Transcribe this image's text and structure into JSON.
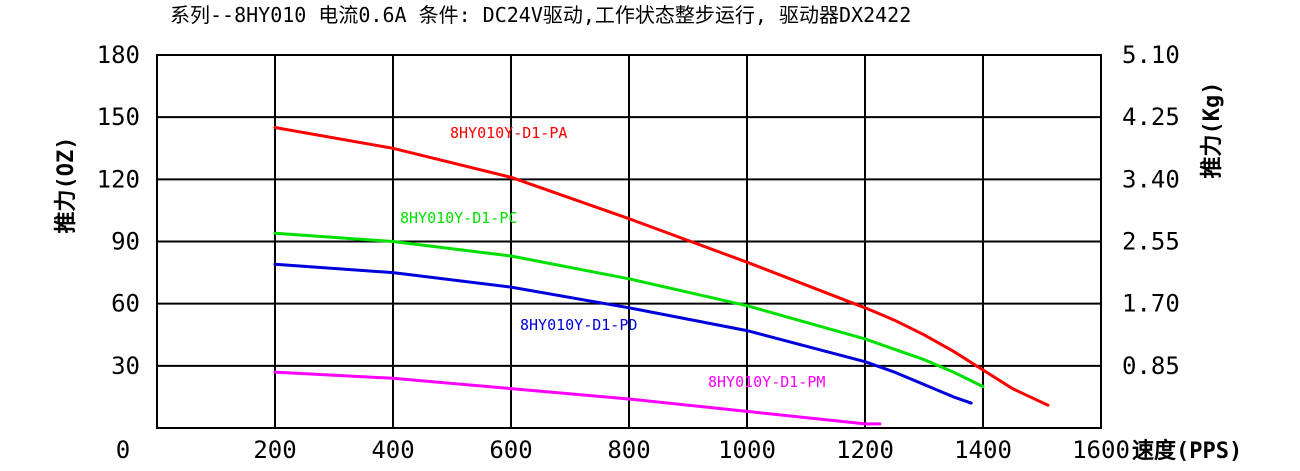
{
  "chart_data": {
    "type": "line",
    "title": "系列--8HY010 电流0.6A    条件: DC24V驱动,工作状态整步运行, 驱动器DX2422",
    "xlabel": "速度(PPS)",
    "ylabel": "推力(OZ)",
    "ylabel_right": "推力(Kg)",
    "xlim": [
      0,
      1600
    ],
    "ylim": [
      0,
      180
    ],
    "ylim_right": [
      0,
      5.1
    ],
    "x_ticks": [
      "0",
      "200",
      "400",
      "600",
      "800",
      "1000",
      "1200",
      "1400",
      "1600"
    ],
    "y_ticks": [
      "30",
      "60",
      "90",
      "120",
      "150",
      "180"
    ],
    "y_ticks_right": [
      "0.85",
      "1.70",
      "2.55",
      "3.40",
      "4.25",
      "5.10"
    ],
    "grid": true,
    "series": [
      {
        "name": "8HY010Y-D1-PA",
        "color": "#ff0000",
        "x": [
          200,
          400,
          600,
          800,
          1000,
          1200,
          1250,
          1300,
          1350,
          1400,
          1450,
          1510
        ],
        "y": [
          145,
          135,
          121,
          101,
          80,
          58,
          52,
          45,
          37,
          28,
          19,
          11
        ]
      },
      {
        "name": "8HY010Y-D1-PC",
        "color": "#00e000",
        "x": [
          200,
          400,
          600,
          800,
          1000,
          1200,
          1250,
          1300,
          1350,
          1400
        ],
        "y": [
          94,
          90,
          83,
          72,
          59,
          43,
          38,
          33,
          27,
          20
        ]
      },
      {
        "name": "8HY010Y-D1-PD",
        "color": "#0000dd",
        "x": [
          200,
          400,
          600,
          800,
          1000,
          1200,
          1250,
          1300,
          1350,
          1380
        ],
        "y": [
          79,
          75,
          68,
          58,
          47,
          32,
          27,
          21,
          15,
          12
        ]
      },
      {
        "name": "8HY010Y-D1-PM",
        "color": "#ff00ff",
        "x": [
          200,
          400,
          600,
          800,
          1000,
          1200,
          1225
        ],
        "y": [
          27,
          24,
          19,
          14,
          8,
          2,
          2
        ]
      }
    ]
  }
}
